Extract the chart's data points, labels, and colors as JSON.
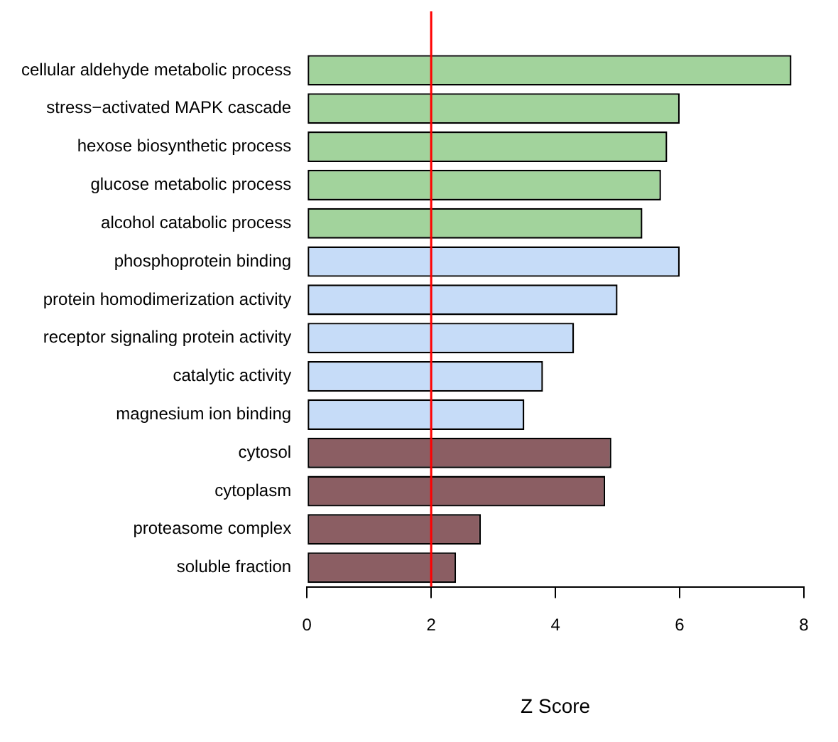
{
  "chart_data": {
    "type": "bar",
    "orientation": "horizontal",
    "xlabel": "Z Score",
    "categories": [
      "cellular aldehyde metabolic process",
      "stress−activated MAPK cascade",
      "hexose biosynthetic process",
      "glucose metabolic process",
      "alcohol catabolic process",
      "phosphoprotein binding",
      "protein homodimerization activity",
      "receptor signaling protein activity",
      "catalytic activity",
      "magnesium ion binding",
      "cytosol",
      "cytoplasm",
      "proteasome complex",
      "soluble fraction"
    ],
    "values": [
      7.8,
      6.0,
      5.8,
      5.7,
      5.4,
      6.0,
      5.0,
      4.3,
      3.8,
      3.5,
      4.9,
      4.8,
      2.8,
      2.4
    ],
    "colors": [
      "#a2d39c",
      "#a2d39c",
      "#a2d39c",
      "#a2d39c",
      "#a2d39c",
      "#c6dcf8",
      "#c6dcf8",
      "#c6dcf8",
      "#c6dcf8",
      "#c6dcf8",
      "#8b5e63",
      "#8b5e63",
      "#8b5e63",
      "#8b5e63"
    ],
    "xlim": [
      0,
      8
    ],
    "xticks": [
      0,
      2,
      4,
      6,
      8
    ],
    "ref_lines": [
      {
        "axis": "x",
        "value": 2,
        "color": "#ff0000"
      }
    ],
    "grid": false,
    "legend": false
  }
}
